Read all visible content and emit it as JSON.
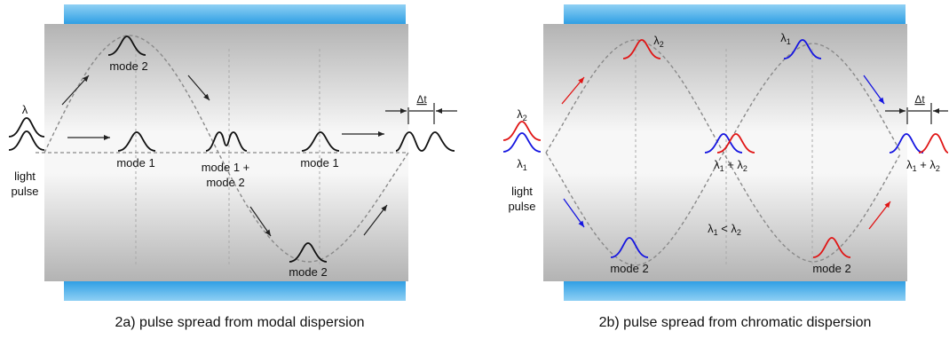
{
  "panel_a": {
    "caption": "2a) pulse spread from modal dispersion",
    "lambda": "λ",
    "light": "light",
    "pulse": "pulse",
    "mode2_top": "mode 2",
    "mode1_a": "mode 1",
    "mode1_plus": "mode 1 +",
    "mode2_mid": "mode 2",
    "mode1_b": "mode 1",
    "mode2_bottom": "mode 2",
    "delta_t": "Δt"
  },
  "panel_b": {
    "caption": "2b) pulse spread from chromatic dispersion",
    "lambda_sym": "λ",
    "sub1": "1",
    "sub2": "2",
    "plus": " + ",
    "less": " < ",
    "light": "light",
    "pulse": "pulse",
    "mode2_left": "mode 2",
    "mode2_right": "mode 2",
    "delta_t": "Δt"
  },
  "colors": {
    "blue": "#1515e0",
    "red": "#e01515",
    "black": "#111111",
    "cladding": "#4aaee8",
    "core_dark": "#b5b5b5",
    "core_light": "#f6f6f6"
  }
}
